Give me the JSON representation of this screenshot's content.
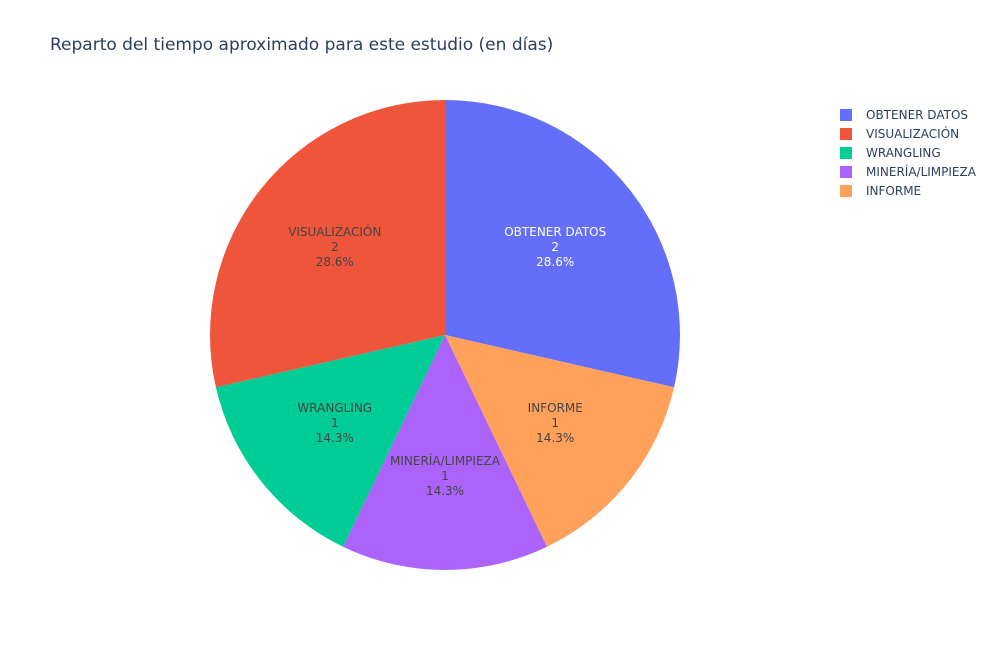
{
  "chart_data": {
    "type": "pie",
    "title": "Reparto del tiempo aproximado para este estudio (en días)",
    "slices": [
      {
        "label": "OBTENER DATOS",
        "value": 2,
        "percent": "28.6%",
        "color": "#636efa"
      },
      {
        "label": "INFORME",
        "value": 1,
        "percent": "14.3%",
        "color": "#ffa15a"
      },
      {
        "label": "MINERÍA/LIMPIEZA",
        "value": 1,
        "percent": "14.3%",
        "color": "#ab63fa"
      },
      {
        "label": "WRANGLING",
        "value": 1,
        "percent": "14.3%",
        "color": "#00cc96"
      },
      {
        "label": "VISUALIZACIÓN",
        "value": 2,
        "percent": "28.6%",
        "color": "#ef553b"
      }
    ],
    "direction": "clockwise",
    "legend": {
      "position": "top-right",
      "items": [
        "OBTENER DATOS",
        "VISUALIZACIÓN",
        "WRANGLING",
        "MINERÍA/LIMPIEZA",
        "INFORME"
      ]
    }
  }
}
